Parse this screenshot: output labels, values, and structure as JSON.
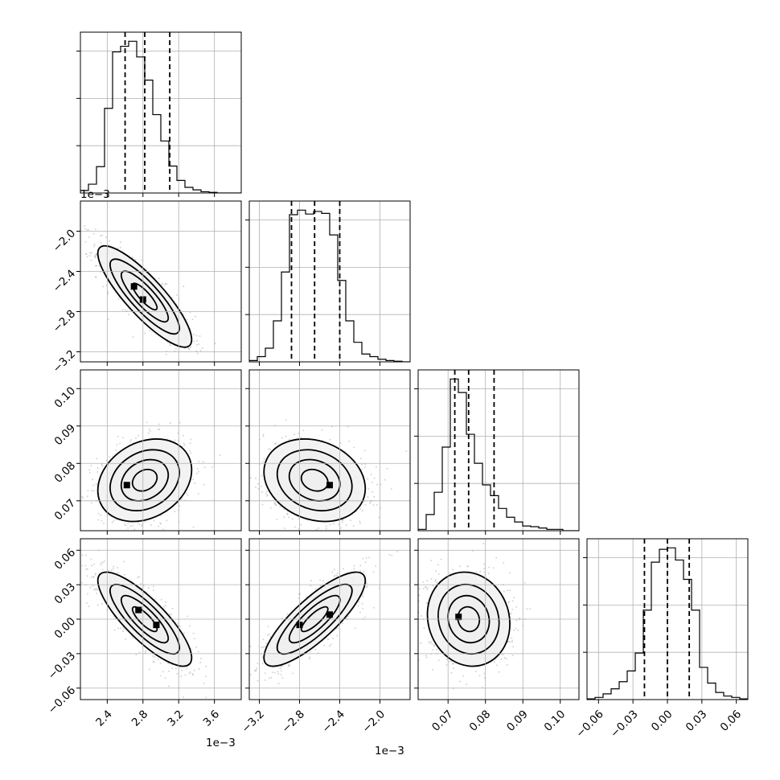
{
  "chart_data": {
    "type": "corner",
    "parameters": [
      {
        "axis_range": [
          2.1,
          3.9
        ],
        "scale_factor": 0.001,
        "offset_label": "1e−3",
        "ticks": [
          2.4,
          2.8,
          3.2,
          3.6
        ],
        "tick_labels": [
          "2.4",
          "2.8",
          "3.2",
          "3.6"
        ],
        "quantiles": [
          2.6,
          2.82,
          3.1
        ],
        "histogram": {
          "edges_start": 2.1,
          "bin_width": 0.09,
          "counts": [
            4,
            14,
            42,
            135,
            225,
            234,
            242,
            217,
            180,
            125,
            83,
            43,
            20,
            9,
            5,
            2,
            1,
            0,
            0,
            0
          ]
        }
      },
      {
        "axis_range": [
          -3.3,
          -1.7
        ],
        "scale_factor": 0.001,
        "offset_label": "1e−3",
        "ticks": [
          -3.2,
          -2.8,
          -2.4,
          -2.0
        ],
        "tick_labels": [
          "−3.2",
          "−2.8",
          "−2.4",
          "−2.0"
        ],
        "quantiles": [
          -2.88,
          -2.65,
          -2.4
        ],
        "histogram": {
          "edges_start": -3.3,
          "bin_width": 0.08,
          "counts": [
            2,
            8,
            21,
            63,
            138,
            226,
            233,
            227,
            231,
            228,
            195,
            125,
            63,
            30,
            12,
            8,
            4,
            2,
            1,
            0
          ]
        }
      },
      {
        "axis_range": [
          0.062,
          0.105
        ],
        "scale_factor": 1,
        "offset_label": "",
        "ticks": [
          0.07,
          0.08,
          0.09,
          0.1
        ],
        "tick_labels": [
          "0.07",
          "0.08",
          "0.09",
          "0.10"
        ],
        "quantiles": [
          0.0718,
          0.0755,
          0.0823
        ],
        "histogram": {
          "edges_start": 0.062,
          "bin_width": 0.00215,
          "counts": [
            2,
            24,
            57,
            124,
            225,
            205,
            143,
            100,
            68,
            52,
            33,
            20,
            13,
            7,
            6,
            4,
            2,
            2,
            0,
            0
          ]
        }
      },
      {
        "axis_range": [
          -0.07,
          0.07
        ],
        "scale_factor": 1,
        "offset_label": "",
        "ticks": [
          -0.06,
          -0.03,
          0.0,
          0.03,
          0.06
        ],
        "tick_labels": [
          "−0.06",
          "−0.03",
          "0.00",
          "0.03",
          "0.06"
        ],
        "quantiles": [
          -0.02,
          0.0,
          0.019
        ],
        "histogram": {
          "edges_start": -0.07,
          "bin_width": 0.007,
          "counts": [
            1,
            3,
            8,
            15,
            25,
            40,
            65,
            125,
            192,
            210,
            212,
            195,
            168,
            125,
            45,
            23,
            10,
            5,
            3,
            1
          ]
        }
      }
    ],
    "correlations": {
      "1-0": -0.85,
      "2-0": 0.25,
      "2-1": -0.2,
      "3-0": -0.82,
      "3-1": 0.82,
      "3-2": -0.1
    },
    "modes": {
      "1-0": [
        [
          2.7,
          -2.55
        ],
        [
          2.8,
          -2.68
        ]
      ],
      "2-0": [
        [
          2.62,
          0.0742
        ]
      ],
      "2-1": [
        [
          -2.5,
          0.0742
        ]
      ],
      "3-0": [
        [
          2.75,
          0.008
        ],
        [
          2.95,
          -0.005
        ]
      ],
      "3-1": [
        [
          -2.8,
          -0.005
        ],
        [
          -2.5,
          0.004
        ]
      ],
      "3-2": [
        [
          0.0728,
          0.002
        ]
      ]
    },
    "contour_levels": 4,
    "show_grid": true
  }
}
